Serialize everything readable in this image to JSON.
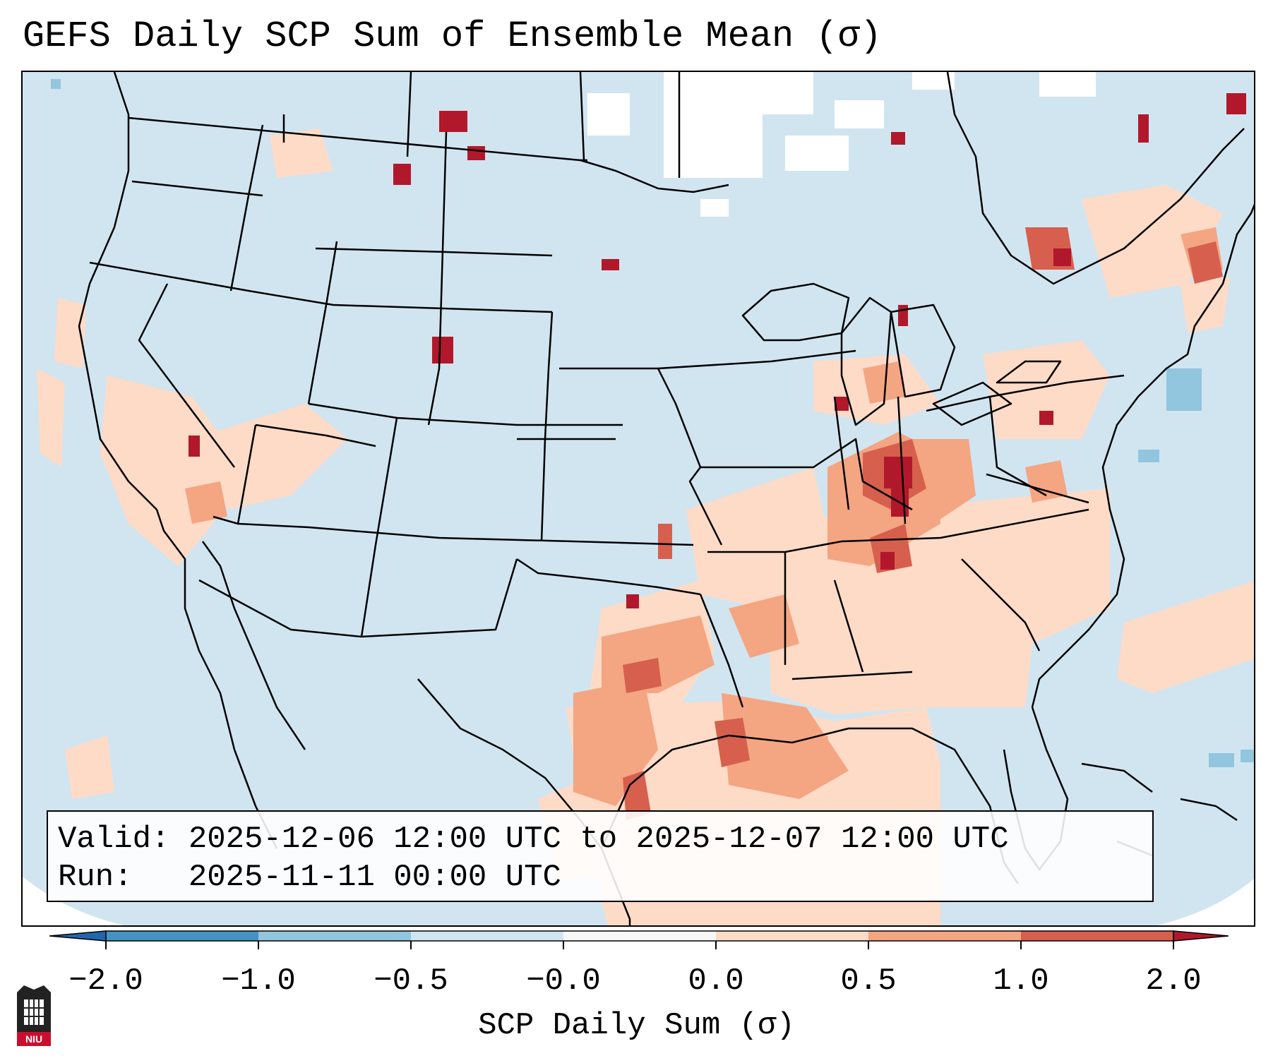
{
  "title": "GEFS Daily SCP Sum of Ensemble Mean (σ)",
  "info": {
    "valid_line": "Valid: 2025-12-06 12:00 UTC to 2025-12-07 12:00 UTC",
    "run_line": "Run:   2025-11-11 00:00 UTC"
  },
  "colorbar": {
    "label": "SCP Daily Sum (σ)",
    "tick_labels": [
      "−2.0",
      "−1.0",
      "−0.5",
      "−0.0",
      "0.0",
      "0.5",
      "1.0",
      "2.0"
    ],
    "colors": {
      "below": "#2166ac",
      "bin_neg2_neg1": "#4393c3",
      "bin_neg1_neg05": "#92c5de",
      "bin_neg05_0": "#d1e5f0",
      "bin_0_0": "#f7f7f7",
      "bin_0_05": "#fddbc7",
      "bin_05_1": "#f4a582",
      "bin_1_2": "#d6604d",
      "above": "#b2182b"
    }
  },
  "map_colors": {
    "ocean_land_background": "#d1e5f0",
    "near_zero": "#ffffff",
    "low_positive": "#fddbc7",
    "moderate_positive": "#f4a582",
    "high_positive": "#d6604d",
    "extreme_positive": "#b2182b",
    "low_negative": "#92c5de",
    "borders": "#000000"
  },
  "logo": {
    "name": "NIU",
    "text": "NIU"
  }
}
